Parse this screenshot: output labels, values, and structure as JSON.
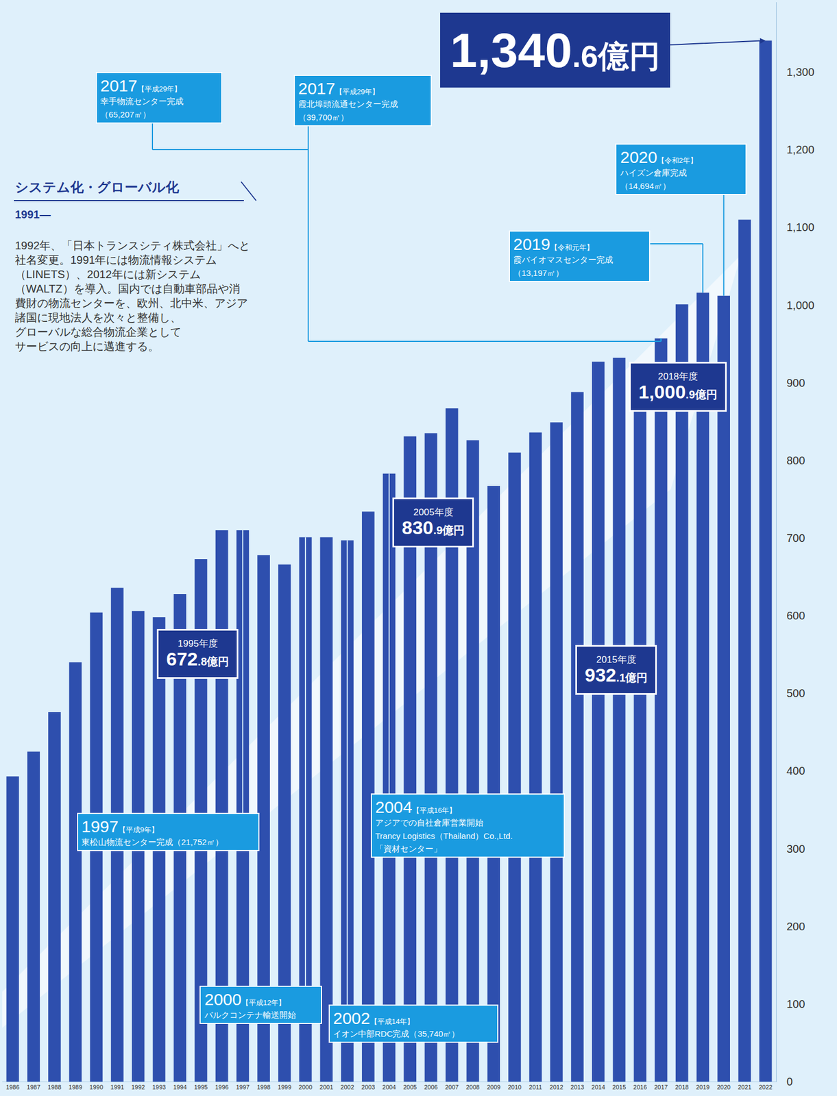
{
  "chart_data": {
    "type": "bar",
    "categories": [
      "1986",
      "1987",
      "1988",
      "1989",
      "1990",
      "1991",
      "1992",
      "1993",
      "1994",
      "1995",
      "1996",
      "1997",
      "1998",
      "1999",
      "2000",
      "2001",
      "2002",
      "2003",
      "2004",
      "2005",
      "2006",
      "2007",
      "2008",
      "2009",
      "2010",
      "2011",
      "2012",
      "2013",
      "2014",
      "2015",
      "2016",
      "2017",
      "2018",
      "2019",
      "2020",
      "2021",
      "2022"
    ],
    "values": [
      393,
      425,
      476,
      540,
      604,
      636,
      606,
      598,
      628,
      672.8,
      710,
      710,
      678,
      666,
      701,
      701,
      697,
      734,
      783,
      830.9,
      835,
      867,
      826,
      767,
      810,
      836,
      849,
      888,
      927,
      932.1,
      915,
      957,
      1000.9,
      1016,
      1012,
      1110,
      1340.6
    ],
    "color": "#2e4fae",
    "ylim": [
      0,
      1390
    ],
    "yticks": [
      0,
      100,
      200,
      300,
      400,
      500,
      600,
      700,
      800,
      900,
      {
        "value": 1000,
        "label": "1,000"
      },
      {
        "value": 1100,
        "label": "1,100"
      },
      {
        "value": 1200,
        "label": "1,200"
      },
      {
        "value": 1300,
        "label": "1,300"
      }
    ],
    "grid": false,
    "headline": {
      "category": "2022",
      "value": 1340.6,
      "value_label": "1,340.6億円"
    },
    "highlights": [
      {
        "category": "1995",
        "label": "1995年度",
        "value": 672.8,
        "value_label": "672.8億円"
      },
      {
        "category": "2005",
        "label": "2005年度",
        "value": 830.9,
        "value_label": "830.9億円"
      },
      {
        "category": "2015",
        "label": "2015年度",
        "value": 932.1,
        "value_label": "932.1億円"
      },
      {
        "category": "2018",
        "label": "2018年度",
        "value": 1000.9,
        "value_label": "1,000.9億円"
      }
    ],
    "milestones": [
      {
        "year": "2017",
        "era": "【平成29年】",
        "lines": [
          "幸手物流センター完成",
          "（65,207㎡）"
        ]
      },
      {
        "year": "2017",
        "era": "【平成29年】",
        "lines": [
          "霞北埠頭流通センター完成",
          "（39,700㎡）"
        ]
      },
      {
        "year": "2020",
        "era": "【令和2年】",
        "lines": [
          "ハイズン倉庫完成",
          "（14,694㎡）"
        ]
      },
      {
        "year": "2019",
        "era": "【令和元年】",
        "lines": [
          "霞バイオマスセンター完成",
          "（13,197㎡）"
        ]
      },
      {
        "year": "1997",
        "era": "【平成9年】",
        "lines": [
          "東松山物流センター完成（21,752㎡）"
        ]
      },
      {
        "year": "2000",
        "era": "【平成12年】",
        "lines": [
          "バルクコンテナ輸送開始"
        ]
      },
      {
        "year": "2004",
        "era": "【平成16年】",
        "lines": [
          "アジアでの自社倉庫営業開始",
          "Trancy Logistics（Thailand）Co.,Ltd.",
          "「資材センター」"
        ]
      },
      {
        "year": "2002",
        "era": "【平成14年】",
        "lines": [
          "イオン中部RDC完成（35,740㎡）"
        ]
      }
    ],
    "section": {
      "title": "システム化・グローバル化",
      "period": "1991—",
      "text": [
        "1992年、「日本トランスシティ株式会社」へと",
        "社名変更。1991年には物流情報システム",
        "（LINETS）、2012年には新システム",
        "（WALTZ）を導入。国内では自動車部品や消",
        "費財の物流センターを、欧州、北中米、アジア",
        "諸国に現地法人を次々と整備し、",
        "グローバルな総合物流企業として",
        "サービスの向上に邁進する。"
      ]
    }
  }
}
